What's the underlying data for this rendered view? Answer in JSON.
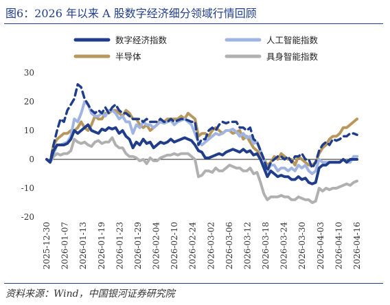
{
  "figure": {
    "title": "图6：2026 年以来 A 股数字经济细分领域行情回顾",
    "source": "资料来源：Wind，中国银河证券研究院"
  },
  "chart_data": {
    "type": "line",
    "title": "",
    "xlabel": "",
    "ylabel": "",
    "ylim": [
      -20,
      30
    ],
    "yticks": [
      -20,
      -10,
      0,
      10,
      20,
      30
    ],
    "x_tick_labels": [
      "2025-12-30",
      "2026-01-07",
      "2026-01-13",
      "2026-01-19",
      "2026-01-23",
      "2026-01-29",
      "2026-02-04",
      "2026-02-10",
      "2026-02-24",
      "2026-03-02",
      "2026-03-06",
      "2026-03-12",
      "2026-03-18",
      "2026-03-24",
      "2026-03-30",
      "2026-04-03",
      "2026-04-10",
      "2026-04-16"
    ],
    "legend_position": "top",
    "series": [
      {
        "name": "数字经济指数",
        "color": "#1f3d8a",
        "style": "solid",
        "width": 4,
        "values": [
          0,
          -1,
          3,
          5,
          5,
          5,
          5.5,
          7,
          10,
          9,
          10,
          11,
          12,
          10,
          9.5,
          9,
          10.5,
          10,
          11,
          10.5,
          11,
          9,
          10,
          8,
          7,
          4,
          6,
          5,
          7,
          5.5,
          6,
          4,
          5,
          6,
          5.5,
          6,
          7,
          6,
          6.5,
          7,
          7.5,
          7,
          6.5,
          5,
          3,
          2.5,
          0.5,
          0.5,
          1,
          1.5,
          2,
          1.5,
          2.5,
          3,
          3.5,
          3,
          2.5,
          3.5,
          2.5,
          3,
          1.5,
          2,
          0,
          -3,
          -6,
          -4,
          -5,
          -6,
          -5.5,
          -6,
          -6,
          -7,
          -7,
          -6,
          -7,
          -6.5,
          -8,
          -8.5,
          -8,
          -3,
          -2,
          -2,
          -1,
          -1,
          -1,
          -1,
          0,
          -1,
          0,
          0,
          0
        ]
      },
      {
        "name": "人工智能指数",
        "color": "#9fb4e0",
        "style": "solid",
        "width": 4,
        "values": [
          0,
          -1,
          2,
          5,
          5,
          5.5,
          6,
          8,
          14,
          13,
          16,
          20,
          19,
          16,
          15,
          15,
          16,
          15,
          17,
          17,
          16,
          14,
          15,
          13,
          13,
          9,
          12,
          11,
          13,
          12,
          12,
          11,
          12,
          13,
          12.5,
          13,
          13.5,
          12,
          13,
          13.5,
          14,
          13,
          12,
          9,
          6,
          5,
          6,
          7,
          8,
          9,
          8.5,
          9,
          10,
          10,
          10.5,
          9.5,
          8,
          9,
          7.5,
          8,
          5.5,
          6,
          3,
          0,
          -4,
          -2,
          -2,
          -4,
          -3,
          -3,
          -4,
          -3,
          -4,
          -2,
          -3,
          -2,
          -4,
          -5,
          -4,
          0,
          -1,
          -1,
          -1,
          -1,
          -1,
          -1,
          0,
          -1,
          -1,
          1,
          1
        ]
      },
      {
        "name": "半导体",
        "color": "#b8975c",
        "style": "solid",
        "width": 4,
        "values": [
          0,
          -1,
          5,
          7,
          8,
          9,
          9,
          10,
          10,
          11,
          13,
          11,
          10,
          12,
          15,
          14,
          14,
          16,
          16,
          17,
          17,
          16,
          15,
          17,
          16,
          14,
          14,
          12,
          11,
          12,
          10,
          11,
          12,
          14,
          13,
          14,
          14,
          14,
          14,
          15,
          14,
          16,
          15,
          14,
          8,
          9,
          9,
          8,
          10,
          11,
          10,
          9,
          10,
          10,
          9,
          9.5,
          10,
          7,
          8,
          6,
          4,
          3,
          2,
          0,
          -2,
          -1,
          1,
          0,
          2,
          1,
          0,
          0,
          -2,
          1,
          0,
          -1,
          -2,
          -2,
          -1,
          2,
          4,
          5,
          7,
          8,
          8,
          9,
          11,
          11,
          12,
          13,
          14
        ]
      },
      {
        "name": "具身智能指数",
        "color": "#b0b0b0",
        "style": "solid",
        "width": 4,
        "values": [
          0,
          -1,
          1,
          2,
          1.5,
          2,
          2,
          3,
          7,
          6,
          5.5,
          6,
          5,
          4.5,
          6,
          6.5,
          5.5,
          6,
          6,
          7.5,
          5,
          4,
          4,
          2,
          1,
          1,
          0.5,
          -0.5,
          0,
          -1.5,
          0.5,
          -0.5,
          -0.5,
          0.5,
          1,
          1.5,
          1.5,
          2,
          1.5,
          2,
          2,
          2,
          1,
          0,
          -6,
          -5.5,
          -4,
          -4,
          -4.5,
          -3,
          -4,
          -4,
          -3,
          -2,
          -2.5,
          -3,
          -3,
          -4,
          -4,
          -3,
          -5,
          -4.5,
          -8,
          -12,
          -14,
          -13,
          -13,
          -13,
          -12.5,
          -13,
          -13,
          -14,
          -14,
          -13,
          -13.5,
          -14,
          -14,
          -15,
          -14.5,
          -10,
          -11,
          -10,
          -10.5,
          -10,
          -10,
          -9.5,
          -9,
          -8.5,
          -9,
          -8,
          -7.5
        ]
      },
      {
        "name": "",
        "color": "#1f3d8a",
        "style": "dashed",
        "width": 3.5,
        "values": [
          0,
          -1,
          5,
          10,
          14,
          13,
          17,
          19,
          21,
          26,
          25,
          21,
          19,
          17,
          16,
          17,
          16,
          18,
          16,
          18,
          19,
          17,
          16,
          16,
          15,
          14,
          14,
          14,
          13,
          14,
          13,
          13,
          13,
          14,
          13,
          13,
          14,
          13,
          13.5,
          14,
          14,
          13.5,
          13,
          13,
          5,
          7,
          7,
          10,
          11,
          10,
          12,
          13,
          12.5,
          13,
          13,
          13,
          11,
          11,
          10,
          11,
          7,
          6,
          3,
          0,
          -4,
          -1,
          0,
          1,
          1,
          0,
          1,
          -1,
          1,
          1,
          2,
          0,
          0,
          -3,
          -1,
          3,
          5,
          6,
          5,
          7,
          6.5,
          7,
          8,
          8,
          9,
          9,
          8.5
        ]
      }
    ]
  }
}
